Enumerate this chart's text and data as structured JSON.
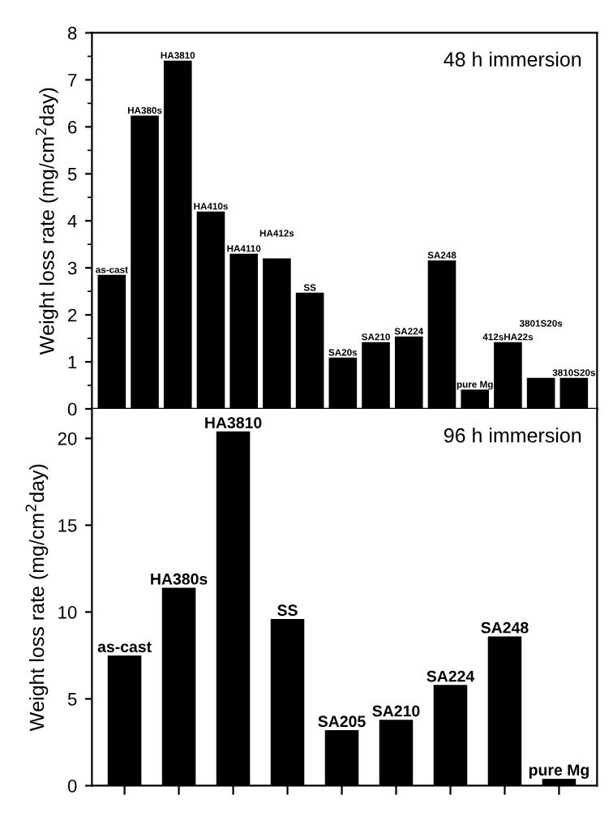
{
  "chart_data": [
    {
      "type": "bar",
      "categories": [
        "as-cast",
        "HA380s",
        "HA3810",
        "HA410s",
        "HA4110",
        "HA412s",
        "SS",
        "SA20s",
        "SA210",
        "SA224",
        "SA248",
        "pure Mg",
        "412sHA22s",
        "3801S20s",
        "3810S20s"
      ],
      "values": [
        2.85,
        6.24,
        7.41,
        4.2,
        3.3,
        3.2,
        2.47,
        1.09,
        1.42,
        1.54,
        3.16,
        0.41,
        1.42,
        0.66,
        0.66
      ],
      "color": "#000000",
      "ylim": [
        0,
        8
      ],
      "yticks": [
        0,
        1,
        2,
        3,
        4,
        5,
        6,
        7,
        8
      ],
      "ylabel": "Weight loss rate (mg/cm$^{2}$day)",
      "annotations": [
        "48 h immersion"
      ],
      "tick_labels": "y",
      "grid": false,
      "legend": false
    },
    {
      "type": "bar",
      "categories": [
        "as-cast",
        "HA380s",
        "HA3810",
        "SS",
        "SA205",
        "SA210",
        "SA224",
        "SA248",
        "pure Mg"
      ],
      "values": [
        7.5,
        11.4,
        20.4,
        9.6,
        3.2,
        3.8,
        5.8,
        8.6,
        0.4
      ],
      "color": "#000000",
      "ylim": [
        0,
        21.7
      ],
      "yticks": [
        0,
        5,
        10,
        15,
        20
      ],
      "ylabel": "Weight loss rate (mg/cm$^{2}$day)",
      "annotations": [
        "96 h immersion"
      ],
      "tick_labels": "y",
      "grid": false,
      "legend": false
    }
  ]
}
